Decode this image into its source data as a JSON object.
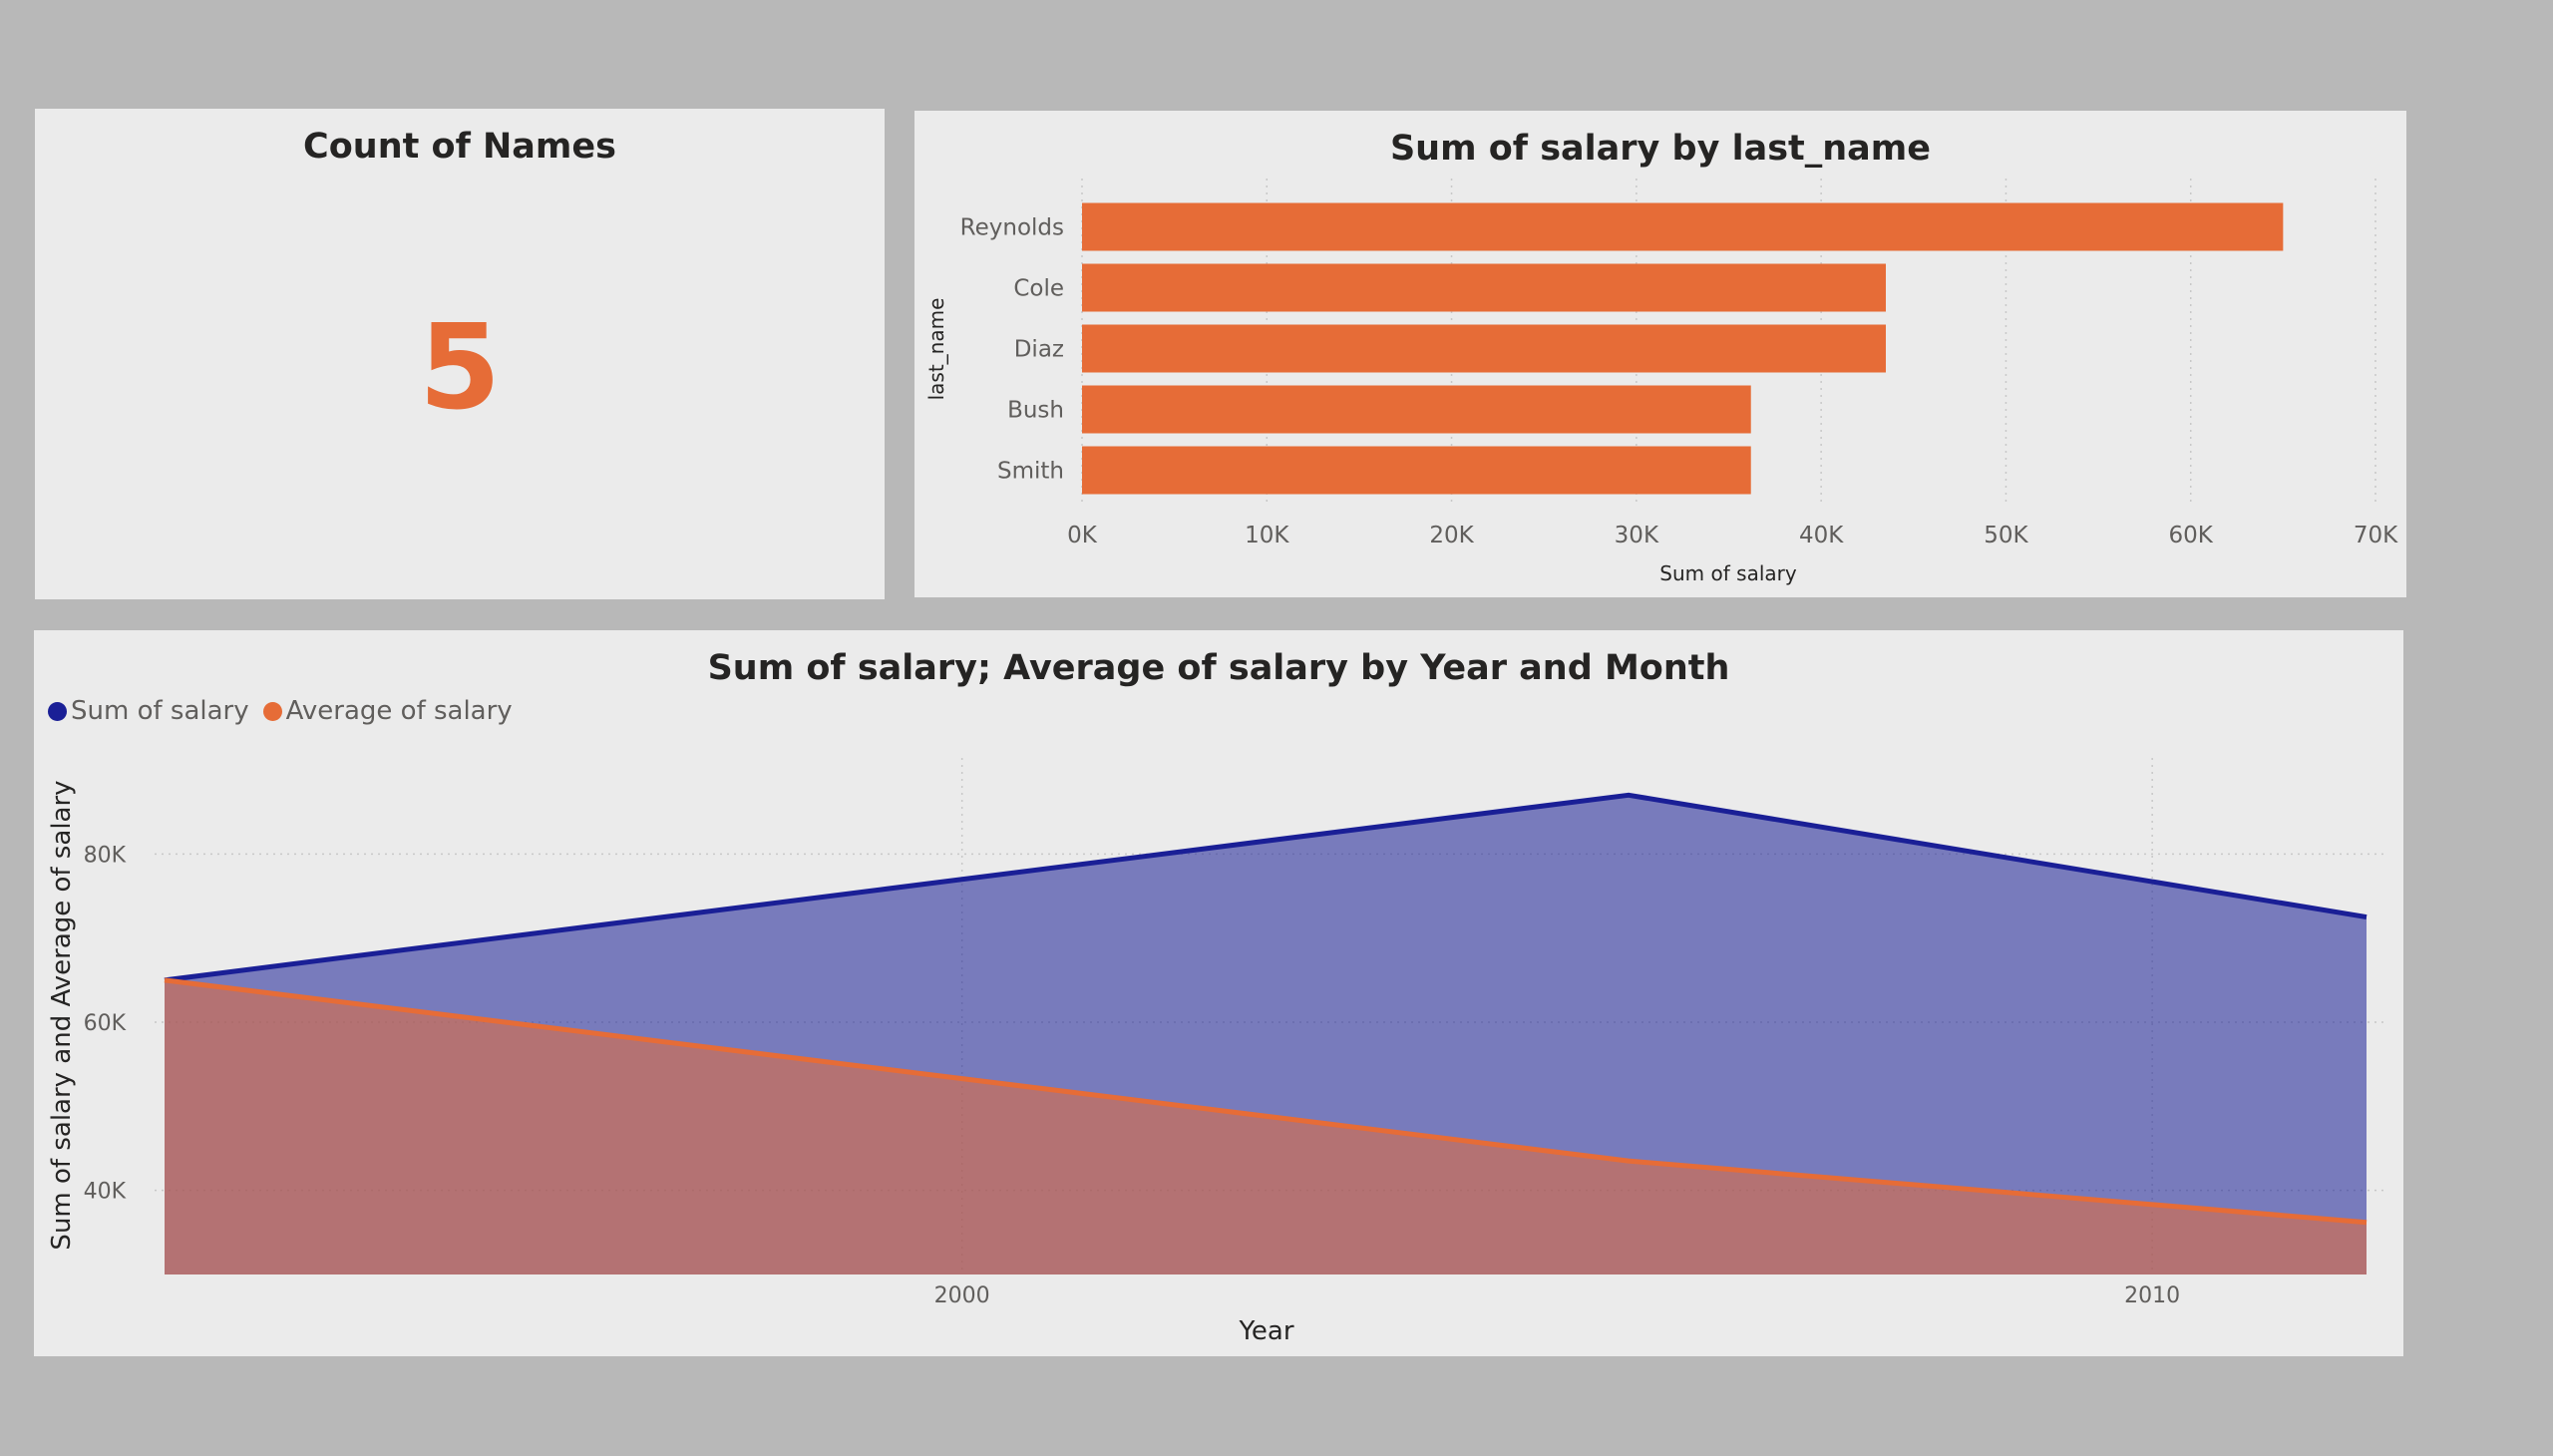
{
  "count_card": {
    "title": "Count of Names",
    "value": "5"
  },
  "bar_card": {
    "title": "Sum of salary by last_name",
    "xlabel": "Sum of salary",
    "ylabel": "last_name"
  },
  "line_card": {
    "title": "Sum of salary; Average of salary by Year and Month",
    "xlabel": "Year",
    "ylabel": "Sum of salary and Average of salary",
    "legend": [
      {
        "label": "Sum of salary",
        "color": "#1a1f96"
      },
      {
        "label": "Average of salary",
        "color": "#e66c37"
      }
    ]
  },
  "colors": {
    "accent": "#e66c37",
    "navy": "#1a1f96",
    "canvas": "#b8b8b8",
    "card": "#ebebeb"
  },
  "chart_data": [
    {
      "type": "bar",
      "orientation": "horizontal",
      "title": "Sum of salary by last_name",
      "xlabel": "Sum of salary",
      "ylabel": "last_name",
      "categories": [
        "Reynolds",
        "Cole",
        "Diaz",
        "Bush",
        "Smith"
      ],
      "values": [
        65000,
        43500,
        43500,
        36200,
        36200
      ],
      "xlim": [
        0,
        70000
      ],
      "xticks": [
        0,
        10000,
        20000,
        30000,
        40000,
        50000,
        60000,
        70000
      ],
      "xtick_labels": [
        "0K",
        "10K",
        "20K",
        "30K",
        "40K",
        "50K",
        "60K",
        "70K"
      ],
      "grid": true,
      "color": "#e66c37"
    },
    {
      "type": "area",
      "title": "Sum of salary; Average of salary by Year and Month",
      "xlabel": "Year",
      "ylabel": "Sum of salary and Average of salary",
      "x": [
        1993.3,
        2005.6,
        2011.8
      ],
      "series": [
        {
          "name": "Sum of salary",
          "values": [
            65000,
            87000,
            72500
          ],
          "color": "#1a1f96"
        },
        {
          "name": "Average of salary",
          "values": [
            65000,
            43500,
            36200
          ],
          "color": "#e66c37"
        }
      ],
      "xlim": [
        1993.3,
        2011.8
      ],
      "ylim": [
        30000,
        90000
      ],
      "xticks": [
        2000,
        2010
      ],
      "xtick_labels": [
        "2000",
        "2010"
      ],
      "yticks": [
        40000,
        60000,
        80000
      ],
      "ytick_labels": [
        "40K",
        "60K",
        "80K"
      ],
      "legend_position": "top-left",
      "grid": true
    }
  ]
}
